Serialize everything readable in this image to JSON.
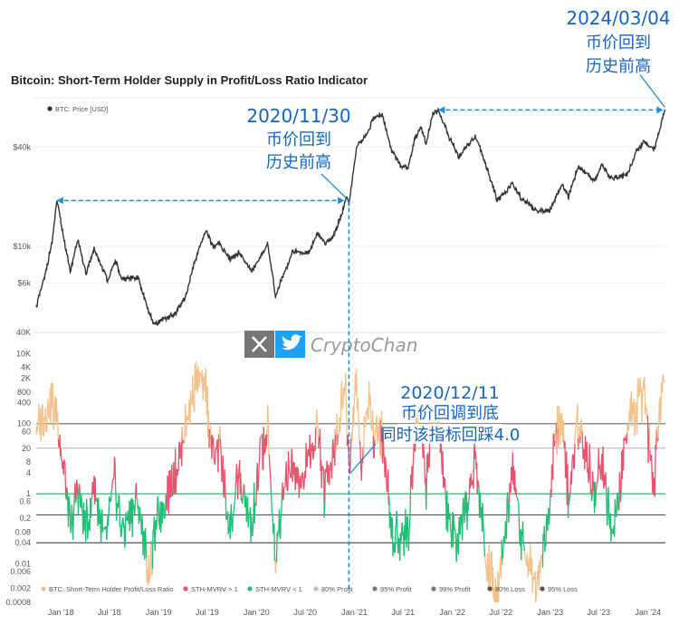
{
  "chart_data": {
    "type": "line",
    "title": "Bitcoin: Short-Term Holder Supply in Profit/Loss Ratio Indicator",
    "x_ticks": [
      "Jan '18",
      "Jul '18",
      "Jan '19",
      "Jul '19",
      "Jan '20",
      "Jul '20",
      "Jan '21",
      "Jul '21",
      "Jan '22",
      "Jul '22",
      "Jan '23",
      "Jul '23",
      "Jan '24"
    ],
    "price_panel": {
      "scale": "log",
      "ylim": [
        3000,
        80000
      ],
      "y_ticks": [
        "$40k",
        "$10k",
        "$6k"
      ],
      "series": [
        {
          "name": "BTC: Price [USD]",
          "color": "#333333",
          "points": [
            [
              "2017-10-01",
              4300
            ],
            [
              "2017-11-01",
              6500
            ],
            [
              "2017-12-01",
              11000
            ],
            [
              "2017-12-17",
              19000
            ],
            [
              "2018-01-01",
              14000
            ],
            [
              "2018-02-05",
              7000
            ],
            [
              "2018-03-05",
              11000
            ],
            [
              "2018-04-05",
              6800
            ],
            [
              "2018-05-05",
              9600
            ],
            [
              "2018-06-25",
              6200
            ],
            [
              "2018-07-25",
              8200
            ],
            [
              "2018-08-15",
              6300
            ],
            [
              "2018-10-15",
              6500
            ],
            [
              "2018-11-25",
              4000
            ],
            [
              "2018-12-15",
              3300
            ],
            [
              "2019-01-15",
              3600
            ],
            [
              "2019-03-01",
              3850
            ],
            [
              "2019-04-15",
              5100
            ],
            [
              "2019-05-15",
              8000
            ],
            [
              "2019-06-26",
              12500
            ],
            [
              "2019-07-25",
              9800
            ],
            [
              "2019-08-15",
              10500
            ],
            [
              "2019-09-25",
              8300
            ],
            [
              "2019-10-26",
              9200
            ],
            [
              "2019-12-15",
              7100
            ],
            [
              "2020-02-12",
              10300
            ],
            [
              "2020-03-12",
              5000
            ],
            [
              "2020-04-15",
              7000
            ],
            [
              "2020-05-15",
              9300
            ],
            [
              "2020-07-15",
              9200
            ],
            [
              "2020-08-15",
              11800
            ],
            [
              "2020-09-15",
              10500
            ],
            [
              "2020-10-15",
              11500
            ],
            [
              "2020-11-15",
              16000
            ],
            [
              "2020-11-30",
              19700
            ],
            [
              "2020-12-11",
              18000
            ],
            [
              "2021-01-08",
              40000
            ],
            [
              "2021-02-15",
              48000
            ],
            [
              "2021-03-13",
              60000
            ],
            [
              "2021-04-14",
              63500
            ],
            [
              "2021-05-20",
              38000
            ],
            [
              "2021-06-22",
              31000
            ],
            [
              "2021-07-20",
              30000
            ],
            [
              "2021-08-15",
              46000
            ],
            [
              "2021-09-07",
              52000
            ],
            [
              "2021-09-25",
              42000
            ],
            [
              "2021-10-20",
              64000
            ],
            [
              "2021-11-10",
              67500
            ],
            [
              "2021-12-15",
              48000
            ],
            [
              "2022-01-24",
              35000
            ],
            [
              "2022-03-29",
              47000
            ],
            [
              "2022-05-12",
              29000
            ],
            [
              "2022-06-18",
              19000
            ],
            [
              "2022-08-14",
              24000
            ],
            [
              "2022-09-15",
              19500
            ],
            [
              "2022-11-10",
              16500
            ],
            [
              "2022-12-30",
              16500
            ],
            [
              "2023-02-15",
              24000
            ],
            [
              "2023-03-10",
              20000
            ],
            [
              "2023-04-14",
              30500
            ],
            [
              "2023-06-15",
              25000
            ],
            [
              "2023-07-13",
              31000
            ],
            [
              "2023-08-17",
              26000
            ],
            [
              "2023-10-15",
              27000
            ],
            [
              "2023-11-15",
              37000
            ],
            [
              "2023-12-15",
              43000
            ],
            [
              "2024-01-23",
              39000
            ],
            [
              "2024-02-15",
              52000
            ],
            [
              "2024-03-04",
              68000
            ]
          ]
        }
      ]
    },
    "ratio_panel": {
      "scale": "log",
      "ylim": [
        0.0008,
        40000
      ],
      "y_ticks": [
        "40K",
        "10K",
        "4K",
        "2K",
        "800",
        "400",
        "100",
        "60",
        "20",
        "8",
        "4",
        "1",
        "0.6",
        "0.2",
        "0.08",
        "0.04",
        "0.01",
        "0.006",
        "0.002",
        "0.0008"
      ],
      "levels": [
        {
          "name": "80% Profit",
          "value": 20,
          "color": "#bdbdbd"
        },
        {
          "name": "95% Profit",
          "value": 100,
          "color": "#777777"
        },
        {
          "name": "99% Profit",
          "value": 100,
          "color": "#777777"
        },
        {
          "name": "80% Loss",
          "value": 0.25,
          "color": "#555555"
        },
        {
          "name": "95% Loss",
          "value": 0.04,
          "color": "#555555"
        }
      ],
      "series": [
        {
          "name": "BTC: Short-Term Holder Profit/Loss Ratio",
          "color": "#f3c28a"
        },
        {
          "name": "STH-MVRV > 1",
          "color": "#e8536b"
        },
        {
          "name": "STH-MVRV < 1",
          "color": "#1fbf74"
        }
      ],
      "points": [
        [
          "2017-10-01",
          60
        ],
        [
          "2017-12-01",
          400
        ],
        [
          "2017-12-20",
          120
        ],
        [
          "2018-01-15",
          3
        ],
        [
          "2018-02-05",
          0.08
        ],
        [
          "2018-03-05",
          1.5
        ],
        [
          "2018-04-05",
          0.1
        ],
        [
          "2018-05-05",
          2
        ],
        [
          "2018-06-15",
          0.04
        ],
        [
          "2018-07-20",
          3
        ],
        [
          "2018-08-15",
          0.08
        ],
        [
          "2018-09-15",
          0.3
        ],
        [
          "2018-10-15",
          0.6
        ],
        [
          "2018-11-25",
          0.006
        ],
        [
          "2018-12-20",
          0.08
        ],
        [
          "2019-01-20",
          0.4
        ],
        [
          "2019-02-20",
          2
        ],
        [
          "2019-03-20",
          8
        ],
        [
          "2019-04-20",
          200
        ],
        [
          "2019-05-20",
          2000
        ],
        [
          "2019-06-26",
          900
        ],
        [
          "2019-07-20",
          10
        ],
        [
          "2019-08-15",
          20
        ],
        [
          "2019-09-25",
          0.1
        ],
        [
          "2019-10-26",
          3
        ],
        [
          "2019-12-15",
          0.1
        ],
        [
          "2020-01-20",
          20
        ],
        [
          "2020-02-12",
          60
        ],
        [
          "2020-03-12",
          0.01
        ],
        [
          "2020-04-15",
          3
        ],
        [
          "2020-05-15",
          10
        ],
        [
          "2020-06-20",
          1.5
        ],
        [
          "2020-07-20",
          20
        ],
        [
          "2020-08-15",
          80
        ],
        [
          "2020-09-10",
          1.2
        ],
        [
          "2020-10-15",
          20
        ],
        [
          "2020-11-15",
          400
        ],
        [
          "2020-11-30",
          800
        ],
        [
          "2020-12-11",
          4
        ],
        [
          "2021-01-08",
          2000
        ],
        [
          "2021-01-25",
          5
        ],
        [
          "2021-02-20",
          400
        ],
        [
          "2021-03-13",
          60
        ],
        [
          "2021-04-14",
          50
        ],
        [
          "2021-05-20",
          0.08
        ],
        [
          "2021-06-22",
          0.06
        ],
        [
          "2021-07-20",
          0.1
        ],
        [
          "2021-08-15",
          60
        ],
        [
          "2021-09-07",
          200
        ],
        [
          "2021-09-25",
          1.5
        ],
        [
          "2021-10-20",
          400
        ],
        [
          "2021-11-10",
          60
        ],
        [
          "2021-12-15",
          0.2
        ],
        [
          "2022-01-24",
          0.03
        ],
        [
          "2022-03-29",
          8
        ],
        [
          "2022-05-12",
          0.01
        ],
        [
          "2022-06-18",
          0.002
        ],
        [
          "2022-08-14",
          4
        ],
        [
          "2022-09-15",
          0.05
        ],
        [
          "2022-11-10",
          0.004
        ],
        [
          "2022-12-30",
          0.2
        ],
        [
          "2023-01-20",
          60
        ],
        [
          "2023-02-15",
          100
        ],
        [
          "2023-03-10",
          0.6
        ],
        [
          "2023-04-14",
          100
        ],
        [
          "2023-06-15",
          1
        ],
        [
          "2023-07-13",
          10
        ],
        [
          "2023-08-17",
          0.05
        ],
        [
          "2023-09-15",
          0.8
        ],
        [
          "2023-10-25",
          400
        ],
        [
          "2023-11-15",
          200
        ],
        [
          "2023-12-15",
          800
        ],
        [
          "2024-01-23",
          2
        ],
        [
          "2024-02-15",
          600
        ],
        [
          "2024-03-04",
          1500
        ]
      ]
    },
    "annotations": [
      {
        "date": "2024-03-04",
        "lines": [
          "2024/03/04",
          "币价回到",
          "历史前高"
        ]
      },
      {
        "date": "2020-11-30",
        "lines": [
          "2020/11/30",
          "币价回到",
          "历史前高"
        ]
      },
      {
        "date": "2020-12-11",
        "lines": [
          "2020/12/11",
          "币价回调到底",
          "同时该指标回踩4.0"
        ]
      }
    ]
  },
  "watermark": {
    "text": "CryptoChan",
    "icons": [
      "x-logo-icon",
      "twitter-bird-icon"
    ]
  }
}
